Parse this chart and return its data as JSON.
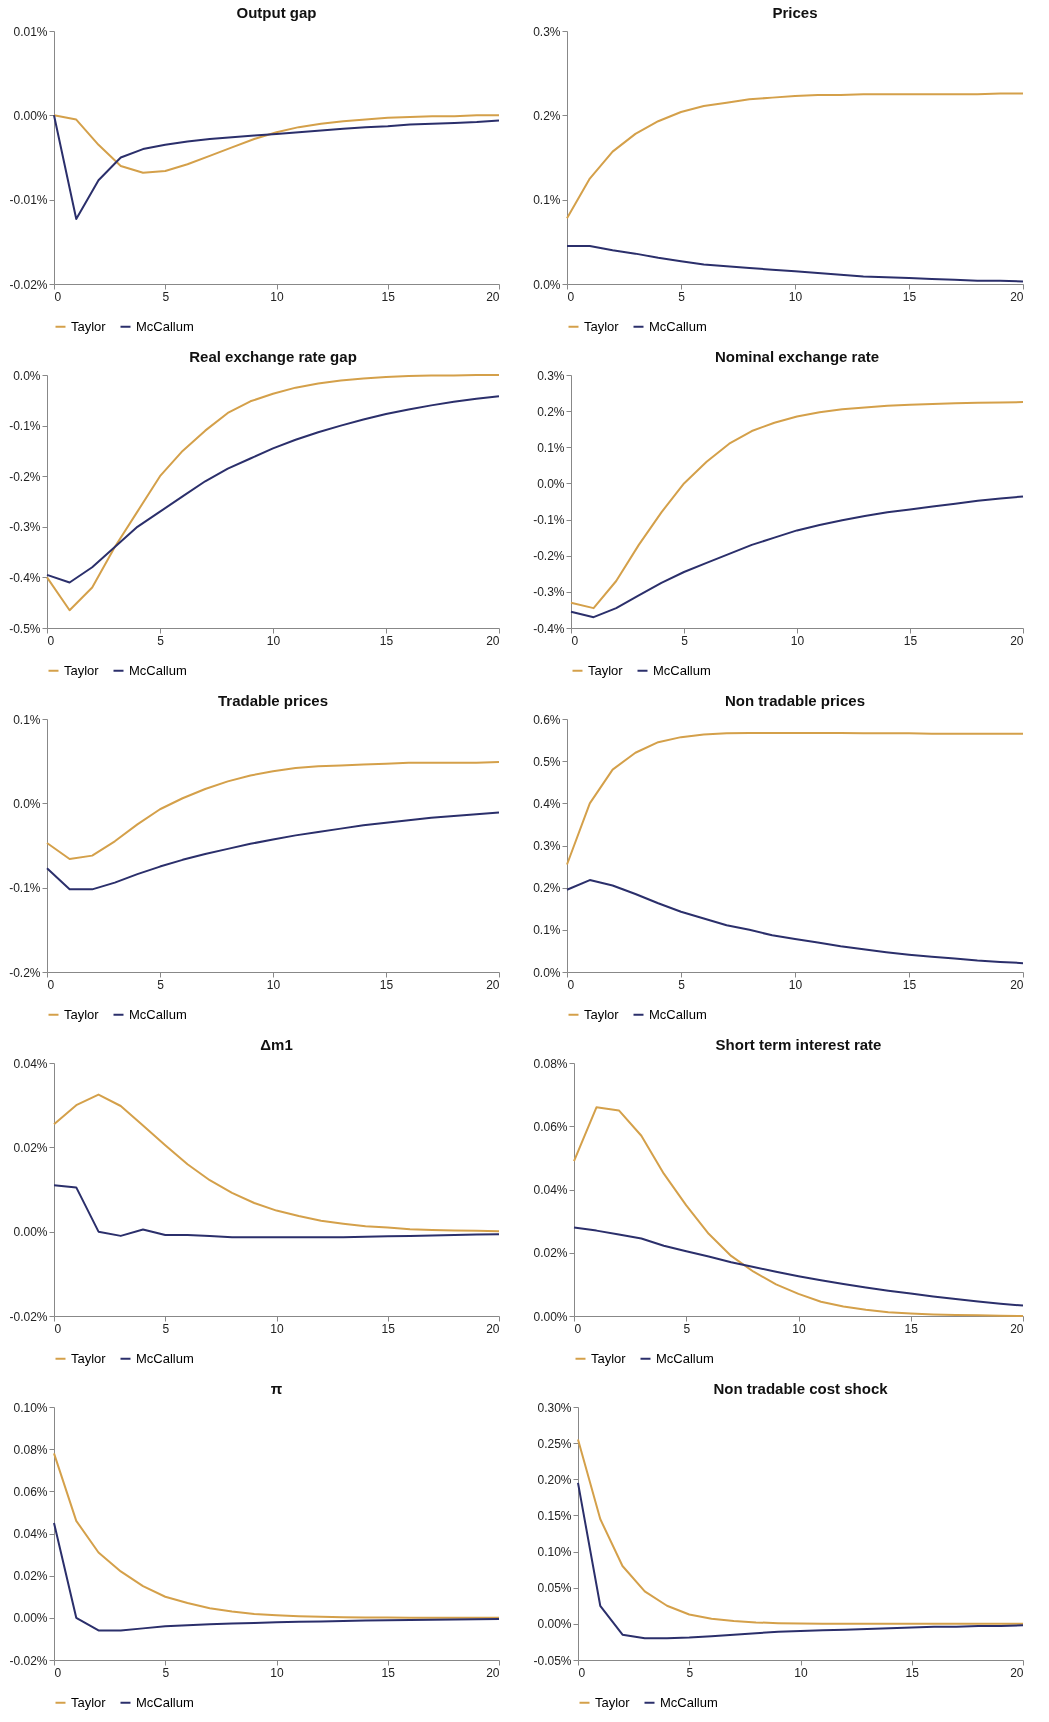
{
  "chart_data": [
    {
      "type": "line",
      "title": "Output gap",
      "legend": "bottom",
      "x": [
        0,
        1,
        2,
        3,
        4,
        5,
        6,
        7,
        8,
        9,
        10,
        11,
        12,
        13,
        14,
        15,
        16,
        17,
        18,
        19,
        20
      ],
      "xlim": [
        0,
        20
      ],
      "xticks": [
        0,
        5,
        10,
        15,
        20
      ],
      "ylim": [
        -0.02,
        0.01
      ],
      "yticks": [
        {
          "value": -0.02,
          "label": "-0.02%"
        },
        {
          "value": -0.01,
          "label": "-0.01%"
        },
        {
          "value": 0,
          "label": "0.00%"
        },
        {
          "value": 0.01,
          "label": "0.01%"
        }
      ],
      "series": [
        {
          "name": "Taylor",
          "color": "#d4a04a",
          "values": [
            0,
            -0.0005,
            -0.0035,
            -0.006,
            -0.0068,
            -0.0066,
            -0.0058,
            -0.0048,
            -0.0038,
            -0.0028,
            -0.002,
            -0.0014,
            -0.001,
            -0.0007,
            -0.0005,
            -0.0003,
            -0.0002,
            -0.0001,
            -0.0001,
            0,
            0
          ]
        },
        {
          "name": "McCallum",
          "color": "#2b2f6b",
          "values": [
            0,
            -0.0123,
            -0.0077,
            -0.005,
            -0.004,
            -0.0035,
            -0.0031,
            -0.0028,
            -0.0026,
            -0.0024,
            -0.0022,
            -0.002,
            -0.0018,
            -0.0016,
            -0.0014,
            -0.0013,
            -0.0011,
            -0.001,
            -0.0009,
            -0.0008,
            -0.0006
          ]
        }
      ]
    },
    {
      "type": "line",
      "title": "Prices",
      "legend": "bottom",
      "x": [
        0,
        1,
        2,
        3,
        4,
        5,
        6,
        7,
        8,
        9,
        10,
        11,
        12,
        13,
        14,
        15,
        16,
        17,
        18,
        19,
        20
      ],
      "xlim": [
        0,
        20
      ],
      "xticks": [
        0,
        5,
        10,
        15,
        20
      ],
      "ylim": [
        0,
        0.3
      ],
      "yticks": [
        {
          "value": 0,
          "label": "0.0%"
        },
        {
          "value": 0.1,
          "label": "0.1%"
        },
        {
          "value": 0.2,
          "label": "0.2%"
        },
        {
          "value": 0.3,
          "label": "0.3%"
        }
      ],
      "series": [
        {
          "name": "Taylor",
          "color": "#d4a04a",
          "values": [
            0.078,
            0.125,
            0.157,
            0.178,
            0.193,
            0.204,
            0.211,
            0.215,
            0.219,
            0.221,
            0.223,
            0.224,
            0.224,
            0.225,
            0.225,
            0.225,
            0.225,
            0.225,
            0.225,
            0.226,
            0.226
          ]
        },
        {
          "name": "McCallum",
          "color": "#2b2f6b",
          "values": [
            0.045,
            0.045,
            0.04,
            0.036,
            0.031,
            0.027,
            0.023,
            0.021,
            0.019,
            0.017,
            0.015,
            0.013,
            0.011,
            0.009,
            0.008,
            0.007,
            0.006,
            0.005,
            0.004,
            0.004,
            0.003
          ]
        }
      ]
    },
    {
      "type": "line",
      "title": "Real exchange rate gap",
      "legend": "bottom",
      "x": [
        0,
        1,
        2,
        3,
        4,
        5,
        6,
        7,
        8,
        9,
        10,
        11,
        12,
        13,
        14,
        15,
        16,
        17,
        18,
        19,
        20
      ],
      "xlim": [
        0,
        20
      ],
      "xticks": [
        0,
        5,
        10,
        15,
        20
      ],
      "ylim": [
        -0.5,
        0
      ],
      "yticks": [
        {
          "value": -0.5,
          "label": "-0.5%"
        },
        {
          "value": -0.4,
          "label": "-0.4%"
        },
        {
          "value": -0.3,
          "label": "-0.3%"
        },
        {
          "value": -0.2,
          "label": "-0.2%"
        },
        {
          "value": -0.1,
          "label": "-0.1%"
        },
        {
          "value": 0,
          "label": "0.0%"
        }
      ],
      "series": [
        {
          "name": "Taylor",
          "color": "#d4a04a",
          "values": [
            -0.4,
            -0.465,
            -0.42,
            -0.34,
            -0.27,
            -0.2,
            -0.15,
            -0.11,
            -0.075,
            -0.052,
            -0.037,
            -0.025,
            -0.017,
            -0.011,
            -0.007,
            -0.004,
            -0.002,
            -0.001,
            -0.001,
            0,
            0
          ]
        },
        {
          "name": "McCallum",
          "color": "#2b2f6b",
          "values": [
            -0.395,
            -0.41,
            -0.38,
            -0.34,
            -0.3,
            -0.27,
            -0.24,
            -0.21,
            -0.185,
            -0.165,
            -0.145,
            -0.128,
            -0.113,
            -0.1,
            -0.088,
            -0.077,
            -0.068,
            -0.06,
            -0.053,
            -0.047,
            -0.042
          ]
        }
      ]
    },
    {
      "type": "line",
      "title": "Nominal exchange rate",
      "legend": "bottom",
      "x": [
        0,
        1,
        2,
        3,
        4,
        5,
        6,
        7,
        8,
        9,
        10,
        11,
        12,
        13,
        14,
        15,
        16,
        17,
        18,
        19,
        20
      ],
      "xlim": [
        0,
        20
      ],
      "xticks": [
        0,
        5,
        10,
        15,
        20
      ],
      "ylim": [
        -0.4,
        0.3
      ],
      "yticks": [
        {
          "value": -0.4,
          "label": "-0.4%"
        },
        {
          "value": -0.3,
          "label": "-0.3%"
        },
        {
          "value": -0.2,
          "label": "-0.2%"
        },
        {
          "value": -0.1,
          "label": "-0.1%"
        },
        {
          "value": 0,
          "label": "0.0%"
        },
        {
          "value": 0.1,
          "label": "0.1%"
        },
        {
          "value": 0.2,
          "label": "0.2%"
        },
        {
          "value": 0.3,
          "label": "0.3%"
        }
      ],
      "series": [
        {
          "name": "Taylor",
          "color": "#d4a04a",
          "values": [
            -0.33,
            -0.345,
            -0.27,
            -0.17,
            -0.08,
            0,
            0.06,
            0.11,
            0.145,
            0.168,
            0.185,
            0.197,
            0.205,
            0.21,
            0.215,
            0.218,
            0.22,
            0.222,
            0.223,
            0.224,
            0.225
          ]
        },
        {
          "name": "McCallum",
          "color": "#2b2f6b",
          "values": [
            -0.355,
            -0.37,
            -0.345,
            -0.31,
            -0.275,
            -0.245,
            -0.22,
            -0.195,
            -0.17,
            -0.15,
            -0.13,
            -0.115,
            -0.102,
            -0.09,
            -0.08,
            -0.072,
            -0.064,
            -0.056,
            -0.048,
            -0.042,
            -0.036
          ]
        }
      ]
    },
    {
      "type": "line",
      "title": "Tradable prices",
      "legend": "bottom",
      "x": [
        0,
        1,
        2,
        3,
        4,
        5,
        6,
        7,
        8,
        9,
        10,
        11,
        12,
        13,
        14,
        15,
        16,
        17,
        18,
        19,
        20
      ],
      "xlim": [
        0,
        20
      ],
      "xticks": [
        0,
        5,
        10,
        15,
        20
      ],
      "ylim": [
        -0.2,
        0.1
      ],
      "yticks": [
        {
          "value": -0.2,
          "label": "-0.2%"
        },
        {
          "value": -0.1,
          "label": "-0.1%"
        },
        {
          "value": 0,
          "label": "0.0%"
        },
        {
          "value": 0.1,
          "label": "0.1%"
        }
      ],
      "series": [
        {
          "name": "Taylor",
          "color": "#d4a04a",
          "values": [
            -0.047,
            -0.066,
            -0.062,
            -0.045,
            -0.025,
            -0.007,
            0.006,
            0.017,
            0.026,
            0.033,
            0.038,
            0.042,
            0.044,
            0.045,
            0.046,
            0.047,
            0.048,
            0.048,
            0.048,
            0.048,
            0.049
          ]
        },
        {
          "name": "McCallum",
          "color": "#2b2f6b",
          "values": [
            -0.077,
            -0.102,
            -0.102,
            -0.094,
            -0.084,
            -0.075,
            -0.067,
            -0.06,
            -0.054,
            -0.048,
            -0.043,
            -0.038,
            -0.034,
            -0.03,
            -0.026,
            -0.023,
            -0.02,
            -0.017,
            -0.015,
            -0.013,
            -0.011
          ]
        }
      ]
    },
    {
      "type": "line",
      "title": "Non tradable prices",
      "legend": "bottom",
      "x": [
        0,
        1,
        2,
        3,
        4,
        5,
        6,
        7,
        8,
        9,
        10,
        11,
        12,
        13,
        14,
        15,
        16,
        17,
        18,
        19,
        20
      ],
      "xlim": [
        0,
        20
      ],
      "xticks": [
        0,
        5,
        10,
        15,
        20
      ],
      "ylim": [
        0,
        0.6
      ],
      "yticks": [
        {
          "value": 0,
          "label": "0.0%"
        },
        {
          "value": 0.1,
          "label": "0.1%"
        },
        {
          "value": 0.2,
          "label": "0.2%"
        },
        {
          "value": 0.3,
          "label": "0.3%"
        },
        {
          "value": 0.4,
          "label": "0.4%"
        },
        {
          "value": 0.5,
          "label": "0.5%"
        },
        {
          "value": 0.6,
          "label": "0.6%"
        }
      ],
      "series": [
        {
          "name": "Taylor",
          "color": "#d4a04a",
          "values": [
            0.255,
            0.4,
            0.48,
            0.52,
            0.545,
            0.557,
            0.563,
            0.566,
            0.567,
            0.567,
            0.567,
            0.567,
            0.567,
            0.566,
            0.566,
            0.566,
            0.565,
            0.565,
            0.565,
            0.565,
            0.565
          ]
        },
        {
          "name": "McCallum",
          "color": "#2b2f6b",
          "values": [
            0.195,
            0.218,
            0.205,
            0.185,
            0.163,
            0.143,
            0.127,
            0.111,
            0.1,
            0.087,
            0.078,
            0.07,
            0.061,
            0.054,
            0.047,
            0.041,
            0.036,
            0.032,
            0.027,
            0.024,
            0.021
          ]
        }
      ]
    },
    {
      "type": "line",
      "title": "Δm1",
      "legend": "bottom",
      "x": [
        0,
        1,
        2,
        3,
        4,
        5,
        6,
        7,
        8,
        9,
        10,
        11,
        12,
        13,
        14,
        15,
        16,
        17,
        18,
        19,
        20
      ],
      "xlim": [
        0,
        20
      ],
      "xticks": [
        0,
        5,
        10,
        15,
        20
      ],
      "ylim": [
        -0.02,
        0.04
      ],
      "yticks": [
        {
          "value": -0.02,
          "label": "-0.02%"
        },
        {
          "value": 0,
          "label": "0.00%"
        },
        {
          "value": 0.02,
          "label": "0.02%"
        },
        {
          "value": 0.04,
          "label": "0.04%"
        }
      ],
      "series": [
        {
          "name": "Taylor",
          "color": "#d4a04a",
          "values": [
            0.0255,
            0.03,
            0.0325,
            0.0298,
            0.0252,
            0.0205,
            0.016,
            0.0122,
            0.0092,
            0.0068,
            0.005,
            0.0037,
            0.0026,
            0.0019,
            0.0013,
            0.001,
            0.0006,
            0.0004,
            0.0003,
            0.0002,
            0.0001
          ]
        },
        {
          "name": "McCallum",
          "color": "#2b2f6b",
          "values": [
            0.011,
            0.0105,
            0,
            -0.001,
            0.0005,
            -0.0008,
            -0.0008,
            -0.001,
            -0.0013,
            -0.0013,
            -0.0013,
            -0.0013,
            -0.0013,
            -0.0013,
            -0.0012,
            -0.0011,
            -0.001,
            -0.0009,
            -0.0008,
            -0.0007,
            -0.0006
          ]
        }
      ]
    },
    {
      "type": "line",
      "title": "Short term interest rate",
      "legend": "bottom",
      "x": [
        0,
        1,
        2,
        3,
        4,
        5,
        6,
        7,
        8,
        9,
        10,
        11,
        12,
        13,
        14,
        15,
        16,
        17,
        18,
        19,
        20
      ],
      "xlim": [
        0,
        20
      ],
      "xticks": [
        0,
        5,
        10,
        15,
        20
      ],
      "ylim": [
        0,
        0.08
      ],
      "yticks": [
        {
          "value": 0,
          "label": "0.00%"
        },
        {
          "value": 0.02,
          "label": "0.02%"
        },
        {
          "value": 0.04,
          "label": "0.04%"
        },
        {
          "value": 0.06,
          "label": "0.06%"
        },
        {
          "value": 0.08,
          "label": "0.08%"
        }
      ],
      "series": [
        {
          "name": "Taylor",
          "color": "#d4a04a",
          "values": [
            0.049,
            0.066,
            0.065,
            0.057,
            0.045,
            0.035,
            0.026,
            0.019,
            0.014,
            0.01,
            0.007,
            0.0045,
            0.003,
            0.002,
            0.0012,
            0.0008,
            0.0005,
            0.0003,
            0.0002,
            0.0001,
            0
          ]
        },
        {
          "name": "McCallum",
          "color": "#2b2f6b",
          "values": [
            0.028,
            0.027,
            0.0258,
            0.0245,
            0.0222,
            0.0205,
            0.0188,
            0.017,
            0.0155,
            0.014,
            0.0126,
            0.0113,
            0.0101,
            0.009,
            0.008,
            0.0071,
            0.0062,
            0.0054,
            0.0046,
            0.0039,
            0.0033
          ]
        }
      ]
    },
    {
      "type": "line",
      "title": "π",
      "legend": "bottom",
      "x": [
        0,
        1,
        2,
        3,
        4,
        5,
        6,
        7,
        8,
        9,
        10,
        11,
        12,
        13,
        14,
        15,
        16,
        17,
        18,
        19,
        20
      ],
      "xlim": [
        0,
        20
      ],
      "xticks": [
        0,
        5,
        10,
        15,
        20
      ],
      "ylim": [
        -0.02,
        0.1
      ],
      "yticks": [
        {
          "value": -0.02,
          "label": "-0.02%"
        },
        {
          "value": 0,
          "label": "0.00%"
        },
        {
          "value": 0.02,
          "label": "0.02%"
        },
        {
          "value": 0.04,
          "label": "0.04%"
        },
        {
          "value": 0.06,
          "label": "0.06%"
        },
        {
          "value": 0.08,
          "label": "0.08%"
        },
        {
          "value": 0.1,
          "label": "0.10%"
        }
      ],
      "series": [
        {
          "name": "Taylor",
          "color": "#d4a04a",
          "values": [
            0.078,
            0.046,
            0.031,
            0.022,
            0.015,
            0.01,
            0.007,
            0.0045,
            0.003,
            0.0018,
            0.0012,
            0.0008,
            0.0005,
            0.0003,
            0.0002,
            0.0001,
            0,
            0,
            0,
            0,
            0
          ]
        },
        {
          "name": "McCallum",
          "color": "#2b2f6b",
          "values": [
            0.045,
            0,
            -0.006,
            -0.006,
            -0.005,
            -0.004,
            -0.0035,
            -0.003,
            -0.0027,
            -0.0024,
            -0.0021,
            -0.0019,
            -0.0017,
            -0.0015,
            -0.0013,
            -0.0011,
            -0.001,
            -0.0009,
            -0.0008,
            -0.0007,
            -0.0006
          ]
        }
      ]
    },
    {
      "type": "line",
      "title": "Non tradable cost shock",
      "legend": "bottom",
      "x": [
        0,
        1,
        2,
        3,
        4,
        5,
        6,
        7,
        8,
        9,
        10,
        11,
        12,
        13,
        14,
        15,
        16,
        17,
        18,
        19,
        20
      ],
      "xlim": [
        0,
        20
      ],
      "xticks": [
        0,
        5,
        10,
        15,
        20
      ],
      "ylim": [
        -0.05,
        0.3
      ],
      "yticks": [
        {
          "value": -0.05,
          "label": "-0.05%"
        },
        {
          "value": 0,
          "label": "0.00%"
        },
        {
          "value": 0.05,
          "label": "0.05%"
        },
        {
          "value": 0.1,
          "label": "0.10%"
        },
        {
          "value": 0.15,
          "label": "0.15%"
        },
        {
          "value": 0.2,
          "label": "0.20%"
        },
        {
          "value": 0.25,
          "label": "0.25%"
        },
        {
          "value": 0.3,
          "label": "0.30%"
        }
      ],
      "series": [
        {
          "name": "Taylor",
          "color": "#d4a04a",
          "values": [
            0.255,
            0.145,
            0.08,
            0.045,
            0.025,
            0.013,
            0.007,
            0.004,
            0.002,
            0.001,
            0.0005,
            0.0003,
            0.0002,
            0.0001,
            0,
            0,
            0,
            0,
            0,
            0,
            0
          ]
        },
        {
          "name": "McCallum",
          "color": "#2b2f6b",
          "values": [
            0.195,
            0.025,
            -0.015,
            -0.02,
            -0.02,
            -0.019,
            -0.017,
            -0.015,
            -0.013,
            -0.011,
            -0.01,
            -0.009,
            -0.008,
            -0.007,
            -0.006,
            -0.005,
            -0.004,
            -0.004,
            -0.003,
            -0.003,
            -0.002
          ]
        }
      ]
    }
  ]
}
